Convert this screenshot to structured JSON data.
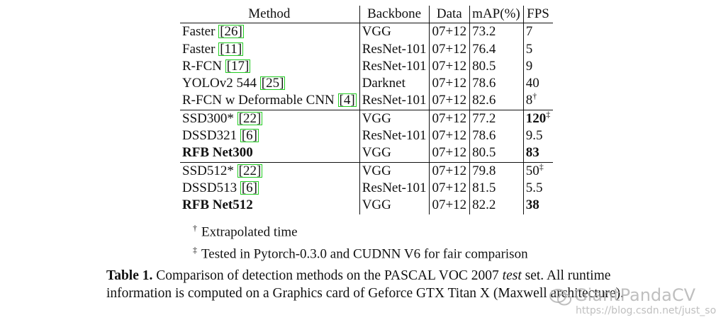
{
  "table": {
    "columns": [
      "Method",
      "Backbone",
      "Data",
      "mAP(%)",
      "FPS"
    ],
    "groups": [
      [
        {
          "method": "Faster",
          "ref": "26",
          "backbone": "VGG",
          "data": "07+12",
          "map": "73.2",
          "fps": "7",
          "fps_mark": ""
        },
        {
          "method": "Faster",
          "ref": "11",
          "backbone": "ResNet-101",
          "data": "07+12",
          "map": "76.4",
          "fps": "5",
          "fps_mark": ""
        },
        {
          "method": "R-FCN",
          "ref": "17",
          "backbone": "ResNet-101",
          "data": "07+12",
          "map": "80.5",
          "fps": "9",
          "fps_mark": ""
        },
        {
          "method": "YOLOv2 544",
          "ref": "25",
          "backbone": "Darknet",
          "data": "07+12",
          "map": "78.6",
          "fps": "40",
          "fps_mark": ""
        },
        {
          "method": "R-FCN w Deformable CNN",
          "ref": "4",
          "backbone": "ResNet-101",
          "data": "07+12",
          "map": "82.6",
          "map_bold": true,
          "fps": "8",
          "fps_mark": "†"
        }
      ],
      [
        {
          "method": "SSD300*",
          "ref": "22",
          "backbone": "VGG",
          "data": "07+12",
          "map": "77.2",
          "fps": "120",
          "fps_bold": true,
          "fps_mark": "‡"
        },
        {
          "method": "DSSD321",
          "ref": "6",
          "backbone": "ResNet-101",
          "data": "07+12",
          "map": "78.6",
          "fps": "9.5",
          "fps_mark": ""
        },
        {
          "method": "RFB Net300",
          "ref": "",
          "method_bold": true,
          "backbone": "VGG",
          "data": "07+12",
          "map": "80.5",
          "map_bold": true,
          "fps": "83",
          "fps_bold": true,
          "fps_mark": ""
        }
      ],
      [
        {
          "method": "SSD512*",
          "ref": "22",
          "backbone": "VGG",
          "data": "07+12",
          "map": "79.8",
          "fps": "50",
          "fps_mark": "‡"
        },
        {
          "method": "DSSD513",
          "ref": "6",
          "backbone": "ResNet-101",
          "data": "07+12",
          "map": "81.5",
          "fps": "5.5",
          "fps_mark": ""
        },
        {
          "method": "RFB Net512",
          "ref": "",
          "method_bold": true,
          "backbone": "VGG",
          "data": "07+12",
          "map": "82.2",
          "map_bold": true,
          "fps": "38",
          "fps_bold": true,
          "fps_mark": ""
        }
      ]
    ]
  },
  "footnotes": [
    {
      "mark": "†",
      "text": "Extrapolated time"
    },
    {
      "mark": "‡",
      "text": "Tested in Pytorch-0.3.0 and CUDNN V6 for fair comparison"
    }
  ],
  "caption": {
    "label": "Table 1.",
    "text_before": " Comparison of detection methods on the PASCAL VOC 2007 ",
    "emphasis": "test",
    "text_after": " set. All runtime information is computed on a Graphics card of Geforce GTX Titan X (Maxwell architecture)."
  },
  "watermark": {
    "title": "GiantPandaCV",
    "url": "https://blog.csdn.net/just_sort"
  },
  "colors": {
    "ref_box": "#22cc22",
    "text": "#111111",
    "watermark": "#aaaaaa"
  }
}
